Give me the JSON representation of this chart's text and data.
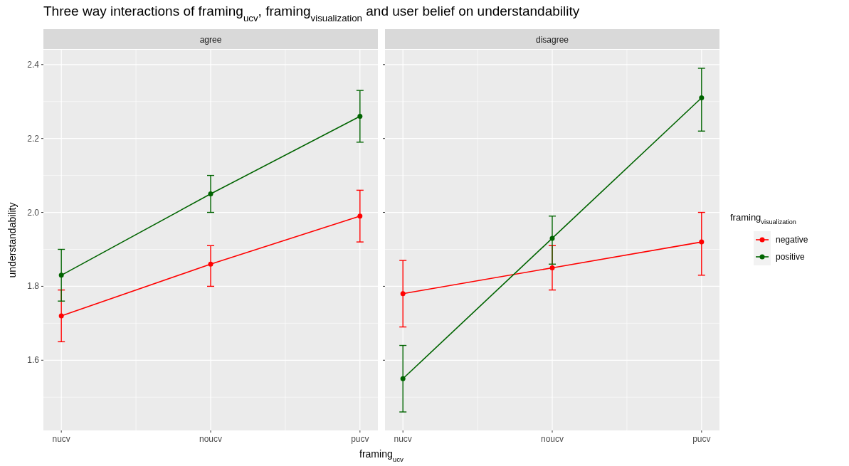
{
  "chart_data": [
    {
      "type": "line",
      "title": "Three way interactions of framing$_{ucv}$, framing$_{visualization}$ and user belief on understandability",
      "subtitle": "agree",
      "xlabel": "framing$_{ucv}$",
      "ylabel": "understandability",
      "categories": [
        "nucv",
        "noucv",
        "pucv"
      ],
      "ylim": [
        1.41,
        2.44
      ],
      "yticks": [
        1.6,
        1.8,
        {
          "value": 2,
          "label": "2.0"
        },
        2.2,
        2.4
      ],
      "grid": true,
      "marker": "circle",
      "line_style": "solid",
      "legend": "right",
      "legend_title": "framing$_{visualization}$",
      "series": [
        {
          "name": "negative",
          "color": "#ff0000",
          "values": [
            1.72,
            1.86,
            1.99
          ],
          "errors": [
            [
              1.65,
              1.79
            ],
            [
              1.8,
              1.91
            ],
            [
              1.92,
              2.06
            ]
          ]
        },
        {
          "name": "positive",
          "color": "#006400",
          "values": [
            1.83,
            2.05,
            2.26
          ],
          "errors": [
            [
              1.76,
              1.9
            ],
            [
              2.0,
              2.1
            ],
            [
              2.19,
              2.33
            ]
          ]
        }
      ]
    },
    {
      "type": "line",
      "subtitle": "disagree",
      "categories": [
        "nucv",
        "noucv",
        "pucv"
      ],
      "ylim": [
        1.41,
        2.44
      ],
      "yticks": [
        {
          "value": 1.6,
          "label": null
        },
        {
          "value": 1.8,
          "label": null
        },
        {
          "value": 2,
          "label": null
        },
        {
          "value": 2.2,
          "label": null
        },
        {
          "value": 2.4,
          "label": null
        }
      ],
      "tick_labels": "x",
      "grid": true,
      "marker": "circle",
      "line_style": "solid",
      "series": [
        {
          "color": "#ff0000",
          "values": [
            1.78,
            1.85,
            1.92
          ],
          "errors": [
            [
              1.69,
              1.87
            ],
            [
              1.79,
              1.91
            ],
            [
              1.83,
              2.0
            ]
          ]
        },
        {
          "color": "#006400",
          "values": [
            1.55,
            1.93,
            2.31
          ],
          "errors": [
            [
              1.46,
              1.64
            ],
            [
              1.86,
              1.99
            ],
            [
              2.22,
              2.39
            ]
          ]
        }
      ]
    }
  ]
}
